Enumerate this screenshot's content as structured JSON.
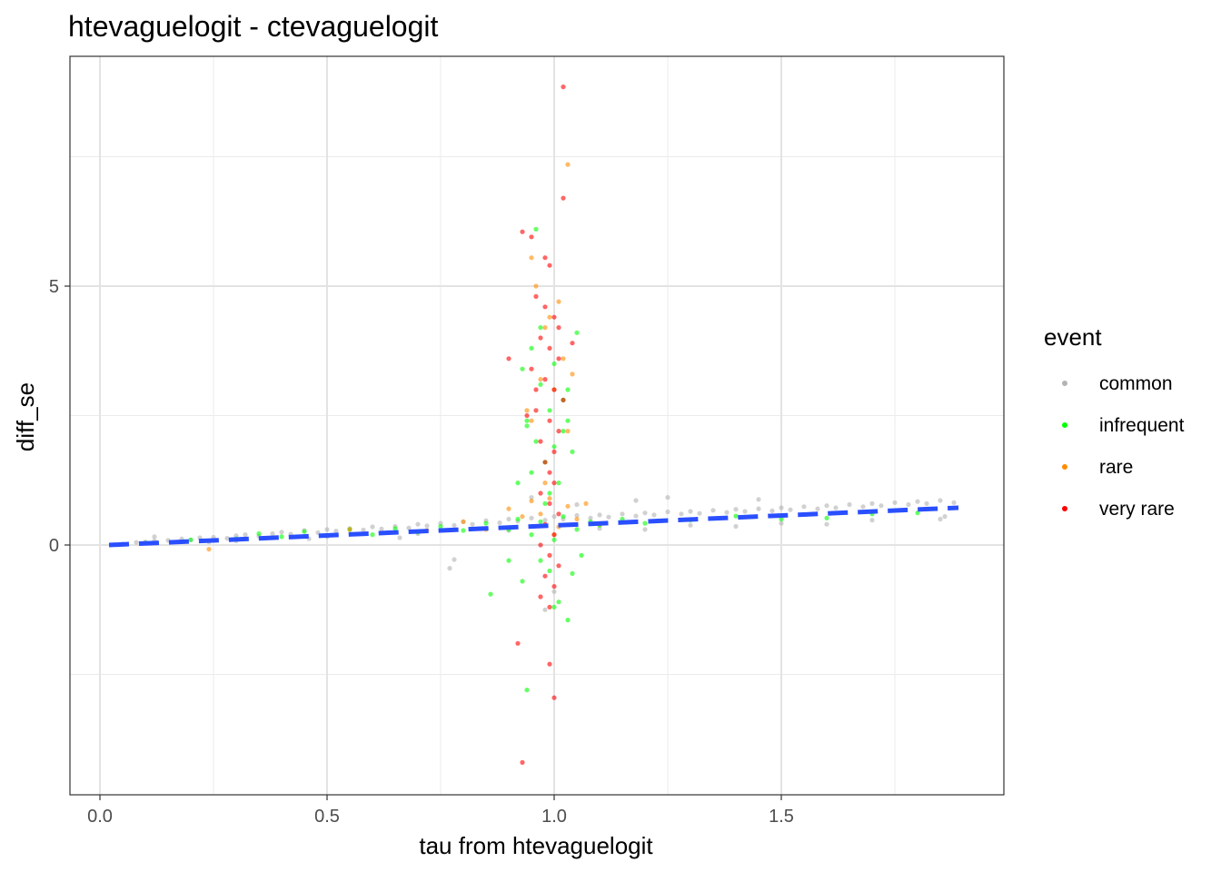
{
  "chart_data": {
    "type": "scatter",
    "title": "htevaguelogit - ctevaguelogit",
    "xlabel": "tau from htevaguelogit",
    "ylabel": "diff_se",
    "xlim": [
      -0.06,
      4.0
    ],
    "ylim": [
      -4.95,
      9.55
    ],
    "x_ticks": [
      0.0,
      0.5,
      1.0,
      1.5
    ],
    "x_tick_labels": [
      "0.0",
      "0.5",
      "1.0",
      "1.5"
    ],
    "x_minor_ticks": [
      0.25,
      0.75,
      1.25,
      1.75
    ],
    "y_ticks": [
      0,
      5
    ],
    "y_tick_labels": [
      "0",
      "5"
    ],
    "y_minor_ticks": [
      -2.5,
      2.5,
      7.5
    ],
    "grid": true,
    "legend": {
      "title": "event",
      "position": "right",
      "entries": [
        {
          "label": "common",
          "color": "#b3b3b3"
        },
        {
          "label": "infrequent",
          "color": "#00ff00"
        },
        {
          "label": "rare",
          "color": "#ff8c00"
        },
        {
          "label": "very rare",
          "color": "#ff0000"
        }
      ]
    },
    "trend_line": {
      "x": [
        0.02,
        1.89
      ],
      "y": [
        0.0,
        0.72
      ],
      "color": "#2a4fff",
      "style": "dashed"
    },
    "series": [
      {
        "name": "common",
        "color": "#b3b3b3",
        "points": [
          [
            0.05,
            0.02
          ],
          [
            0.08,
            0.05
          ],
          [
            0.1,
            0.06
          ],
          [
            0.12,
            0.08
          ],
          [
            0.15,
            0.09
          ],
          [
            0.18,
            0.12
          ],
          [
            0.2,
            0.1
          ],
          [
            0.22,
            0.14
          ],
          [
            0.25,
            0.15
          ],
          [
            0.28,
            0.13
          ],
          [
            0.3,
            0.18
          ],
          [
            0.32,
            0.2
          ],
          [
            0.35,
            0.17
          ],
          [
            0.38,
            0.22
          ],
          [
            0.4,
            0.25
          ],
          [
            0.42,
            0.21
          ],
          [
            0.45,
            0.28
          ],
          [
            0.48,
            0.24
          ],
          [
            0.5,
            0.3
          ],
          [
            0.52,
            0.27
          ],
          [
            0.55,
            0.32
          ],
          [
            0.58,
            0.29
          ],
          [
            0.6,
            0.35
          ],
          [
            0.62,
            0.31
          ],
          [
            0.65,
            0.36
          ],
          [
            0.68,
            0.33
          ],
          [
            0.7,
            0.4
          ],
          [
            0.72,
            0.37
          ],
          [
            0.75,
            0.42
          ],
          [
            0.78,
            0.38
          ],
          [
            0.8,
            0.45
          ],
          [
            0.82,
            0.4
          ],
          [
            0.85,
            0.47
          ],
          [
            0.88,
            0.43
          ],
          [
            0.9,
            0.5
          ],
          [
            0.92,
            0.46
          ],
          [
            0.95,
            0.52
          ],
          [
            0.98,
            0.48
          ],
          [
            1.0,
            0.55
          ],
          [
            1.02,
            0.5
          ],
          [
            1.05,
            0.57
          ],
          [
            1.08,
            0.52
          ],
          [
            1.1,
            0.58
          ],
          [
            1.12,
            0.54
          ],
          [
            1.15,
            0.6
          ],
          [
            1.18,
            0.56
          ],
          [
            1.2,
            0.62
          ],
          [
            1.22,
            0.58
          ],
          [
            1.25,
            0.64
          ],
          [
            1.28,
            0.6
          ],
          [
            1.3,
            0.65
          ],
          [
            1.32,
            0.61
          ],
          [
            1.35,
            0.67
          ],
          [
            1.38,
            0.63
          ],
          [
            1.4,
            0.69
          ],
          [
            1.42,
            0.65
          ],
          [
            1.45,
            0.7
          ],
          [
            1.48,
            0.66
          ],
          [
            1.5,
            0.72
          ],
          [
            1.52,
            0.68
          ],
          [
            1.55,
            0.74
          ],
          [
            1.58,
            0.7
          ],
          [
            1.6,
            0.76
          ],
          [
            1.62,
            0.72
          ],
          [
            1.65,
            0.78
          ],
          [
            1.68,
            0.74
          ],
          [
            1.7,
            0.8
          ],
          [
            1.72,
            0.76
          ],
          [
            1.75,
            0.82
          ],
          [
            1.78,
            0.78
          ],
          [
            1.8,
            0.84
          ],
          [
            1.82,
            0.8
          ],
          [
            1.85,
            0.86
          ],
          [
            1.88,
            0.82
          ],
          [
            0.3,
            0.08
          ],
          [
            0.5,
            0.16
          ],
          [
            0.7,
            0.22
          ],
          [
            0.9,
            0.28
          ],
          [
            1.1,
            0.32
          ],
          [
            1.3,
            0.38
          ],
          [
            1.5,
            0.42
          ],
          [
            1.7,
            0.48
          ],
          [
            1.85,
            0.5
          ],
          [
            1.6,
            0.4
          ],
          [
            1.4,
            0.36
          ],
          [
            1.2,
            0.3
          ],
          [
            0.95,
            0.92
          ],
          [
            1.05,
            0.78
          ],
          [
            1.18,
            0.86
          ],
          [
            1.45,
            0.88
          ],
          [
            1.25,
            0.92
          ],
          [
            0.77,
            -0.45
          ],
          [
            0.78,
            -0.28
          ],
          [
            1.0,
            -0.9
          ],
          [
            0.98,
            -1.25
          ],
          [
            0.12,
            0.16
          ],
          [
            0.24,
            0.06
          ],
          [
            0.46,
            0.12
          ],
          [
            0.66,
            0.14
          ],
          [
            1.86,
            0.55
          ]
        ]
      },
      {
        "name": "infrequent",
        "color": "#00ff00",
        "points": [
          [
            0.1,
            0.04
          ],
          [
            0.2,
            0.1
          ],
          [
            0.3,
            0.12
          ],
          [
            0.35,
            0.22
          ],
          [
            0.4,
            0.16
          ],
          [
            0.45,
            0.26
          ],
          [
            0.5,
            0.18
          ],
          [
            0.55,
            0.3
          ],
          [
            0.6,
            0.2
          ],
          [
            0.65,
            0.32
          ],
          [
            0.7,
            0.25
          ],
          [
            0.75,
            0.36
          ],
          [
            0.8,
            0.28
          ],
          [
            0.85,
            0.42
          ],
          [
            0.9,
            0.3
          ],
          [
            0.92,
            0.5
          ],
          [
            0.95,
            0.2
          ],
          [
            0.97,
            0.45
          ],
          [
            1.0,
            0.1
          ],
          [
            1.02,
            0.55
          ],
          [
            1.05,
            0.3
          ],
          [
            1.08,
            0.45
          ],
          [
            1.1,
            0.38
          ],
          [
            1.15,
            0.5
          ],
          [
            1.2,
            0.42
          ],
          [
            1.3,
            0.48
          ],
          [
            1.4,
            0.56
          ],
          [
            1.5,
            0.5
          ],
          [
            1.6,
            0.52
          ],
          [
            1.7,
            0.6
          ],
          [
            1.8,
            0.62
          ],
          [
            0.93,
            3.4
          ],
          [
            0.94,
            2.4
          ],
          [
            0.95,
            3.8
          ],
          [
            0.96,
            2.0
          ],
          [
            0.97,
            3.1
          ],
          [
            0.98,
            1.6
          ],
          [
            0.99,
            2.6
          ],
          [
            1.0,
            3.5
          ],
          [
            1.01,
            1.2
          ],
          [
            1.02,
            2.2
          ],
          [
            1.03,
            3.0
          ],
          [
            1.04,
            1.8
          ],
          [
            0.92,
            1.2
          ],
          [
            0.95,
            1.4
          ],
          [
            0.98,
            0.8
          ],
          [
            1.0,
            1.9
          ],
          [
            1.05,
            4.1
          ],
          [
            0.96,
            6.1
          ],
          [
            0.99,
            -0.5
          ],
          [
            1.01,
            -1.1
          ],
          [
            1.03,
            -1.45
          ],
          [
            0.86,
            -0.95
          ],
          [
            0.94,
            -2.8
          ],
          [
            1.04,
            -0.55
          ],
          [
            0.97,
            -0.3
          ],
          [
            1.0,
            -1.2
          ],
          [
            0.93,
            -0.7
          ],
          [
            1.06,
            -0.2
          ],
          [
            0.9,
            -0.3
          ],
          [
            0.94,
            2.3
          ],
          [
            0.97,
            4.2
          ],
          [
            1.02,
            2.8
          ],
          [
            0.99,
            1.0
          ],
          [
            1.03,
            2.4
          ]
        ]
      },
      {
        "name": "rare",
        "color": "#ff8c00",
        "points": [
          [
            0.24,
            -0.08
          ],
          [
            0.55,
            0.3
          ],
          [
            0.72,
            0.28
          ],
          [
            0.8,
            0.45
          ],
          [
            0.85,
            0.3
          ],
          [
            0.9,
            0.7
          ],
          [
            0.93,
            0.55
          ],
          [
            0.95,
            0.85
          ],
          [
            0.97,
            0.6
          ],
          [
            0.99,
            0.9
          ],
          [
            1.01,
            0.35
          ],
          [
            1.03,
            0.75
          ],
          [
            1.05,
            0.5
          ],
          [
            1.07,
            0.8
          ],
          [
            1.1,
            0.4
          ],
          [
            0.95,
            2.4
          ],
          [
            0.97,
            3.2
          ],
          [
            0.99,
            4.4
          ],
          [
            1.0,
            3.0
          ],
          [
            1.02,
            3.6
          ],
          [
            1.03,
            2.2
          ],
          [
            0.96,
            5.0
          ],
          [
            0.98,
            4.2
          ],
          [
            1.01,
            4.7
          ],
          [
            1.04,
            3.3
          ],
          [
            0.94,
            2.6
          ],
          [
            1.03,
            7.35
          ],
          [
            0.95,
            5.55
          ],
          [
            1.0,
            0.2
          ],
          [
            0.98,
            1.2
          ]
        ]
      },
      {
        "name": "very rare",
        "color": "#ff0000",
        "points": [
          [
            1.02,
            8.85
          ],
          [
            1.02,
            6.7
          ],
          [
            0.93,
            6.05
          ],
          [
            0.95,
            5.95
          ],
          [
            0.98,
            5.55
          ],
          [
            0.99,
            5.4
          ],
          [
            0.96,
            4.8
          ],
          [
            0.98,
            4.6
          ],
          [
            1.0,
            4.4
          ],
          [
            1.01,
            4.2
          ],
          [
            0.97,
            4.0
          ],
          [
            0.99,
            3.8
          ],
          [
            1.01,
            3.6
          ],
          [
            0.95,
            3.4
          ],
          [
            0.98,
            3.2
          ],
          [
            1.0,
            3.0
          ],
          [
            1.02,
            2.8
          ],
          [
            0.96,
            2.6
          ],
          [
            0.99,
            2.4
          ],
          [
            1.01,
            2.2
          ],
          [
            0.97,
            2.0
          ],
          [
            1.0,
            1.8
          ],
          [
            0.98,
            1.6
          ],
          [
            0.99,
            1.4
          ],
          [
            1.0,
            1.2
          ],
          [
            0.97,
            1.0
          ],
          [
            0.99,
            0.8
          ],
          [
            1.01,
            0.6
          ],
          [
            0.98,
            0.4
          ],
          [
            1.0,
            0.2
          ],
          [
            0.97,
            0.0
          ],
          [
            0.99,
            -0.2
          ],
          [
            1.01,
            -0.4
          ],
          [
            0.98,
            -0.6
          ],
          [
            1.0,
            -0.8
          ],
          [
            0.97,
            -1.0
          ],
          [
            0.99,
            -1.2
          ],
          [
            0.92,
            -1.9
          ],
          [
            0.99,
            -2.3
          ],
          [
            1.0,
            -2.95
          ],
          [
            0.93,
            -4.2
          ],
          [
            0.9,
            3.6
          ],
          [
            0.94,
            2.5
          ],
          [
            1.04,
            3.9
          ],
          [
            0.96,
            3.0
          ]
        ]
      }
    ]
  }
}
